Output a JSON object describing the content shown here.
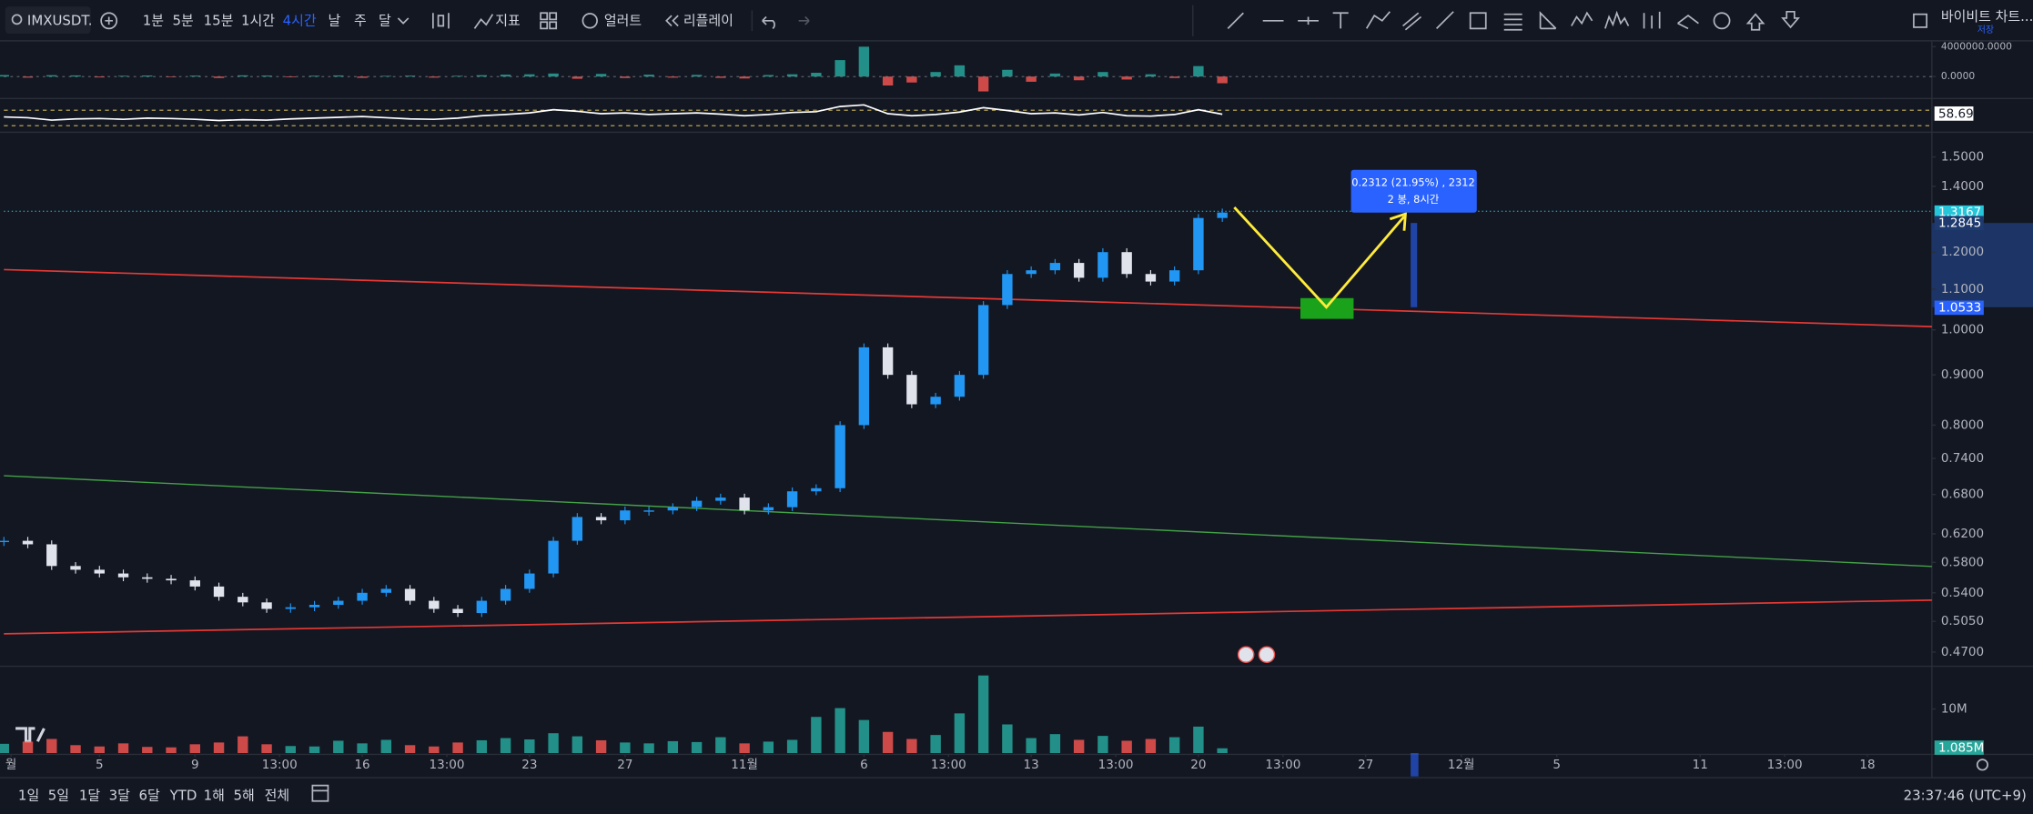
{
  "toolbar": {
    "symbol": "IMXUSDT.",
    "intervals": [
      "1분",
      "5분",
      "15분",
      "1시간",
      "4시간",
      "날",
      "주",
      "달"
    ],
    "indicators": "지표",
    "alerts": "얼러트",
    "replay": "리플레이",
    "right_label": "바이비트 차트...",
    "right_sub": "저장"
  },
  "measure": {
    "line1": "0.2312 (21.95%) , 2312",
    "line2": "2 봉, 8시간"
  },
  "bottom_bar": {
    "ranges": [
      "1일",
      "5일",
      "1달",
      "3달",
      "6달",
      "YTD",
      "1해",
      "5해",
      "전체"
    ],
    "clock": "23:37:46 (UTC+9)"
  },
  "chart_data": [
    {
      "type": "candlestick",
      "up_color": "#2196f3",
      "down_color": "#e0e3eb",
      "log_scale": true,
      "x": [
        0,
        1,
        2,
        3,
        4,
        5,
        6,
        7,
        8,
        9,
        10,
        11,
        12,
        13,
        14,
        15,
        16,
        17,
        18,
        19,
        20,
        21,
        22,
        23,
        24,
        25,
        26,
        27,
        28,
        29,
        30,
        31,
        32,
        33,
        34,
        35,
        36,
        37,
        38,
        39,
        40,
        41,
        42,
        43,
        44,
        45,
        46,
        47,
        48,
        49,
        50,
        51
      ],
      "values": [
        0.61,
        0.605,
        0.575,
        0.57,
        0.565,
        0.56,
        0.558,
        0.556,
        0.548,
        0.535,
        0.528,
        0.52,
        0.522,
        0.525,
        0.53,
        0.54,
        0.545,
        0.53,
        0.52,
        0.515,
        0.53,
        0.545,
        0.565,
        0.61,
        0.645,
        0.64,
        0.655,
        0.655,
        0.66,
        0.67,
        0.675,
        0.655,
        0.66,
        0.685,
        0.69,
        0.8,
        0.96,
        0.9,
        0.84,
        0.855,
        0.9,
        1.06,
        1.14,
        1.15,
        1.17,
        1.13,
        1.2,
        1.14,
        1.12,
        1.15,
        1.3,
        1.3167
      ],
      "ylim": [
        0.456,
        1.575
      ],
      "yticks": [
        {
          "value": 1.5,
          "label": "1.5000"
        },
        {
          "value": 1.4,
          "label": "1.4000"
        },
        {
          "value": 1.2,
          "label": "1.2000"
        },
        {
          "value": 1.1,
          "label": "1.1000"
        },
        {
          "value": 1.0,
          "label": "1.0000"
        },
        {
          "value": 0.9,
          "label": "0.9000"
        },
        {
          "value": 0.8,
          "label": "0.8000"
        },
        {
          "value": 0.74,
          "label": "0.7400"
        },
        {
          "value": 0.68,
          "label": "0.6800"
        },
        {
          "value": 0.62,
          "label": "0.6200"
        },
        {
          "value": 0.58,
          "label": "0.5800"
        },
        {
          "value": 0.54,
          "label": "0.5400"
        },
        {
          "value": 0.505,
          "label": "0.5050"
        },
        {
          "value": 0.47,
          "label": "0.4700"
        }
      ],
      "xlim": [
        0,
        80.7
      ],
      "xticks": [
        {
          "value": 0.3,
          "label": "월"
        },
        {
          "value": 4,
          "label": "5"
        },
        {
          "value": 8,
          "label": "9"
        },
        {
          "value": 11.54,
          "label": "13:00"
        },
        {
          "value": 15,
          "label": "16"
        },
        {
          "value": 18.54,
          "label": "13:00"
        },
        {
          "value": 22,
          "label": "23"
        },
        {
          "value": 26,
          "label": "27"
        },
        {
          "value": 31,
          "label": "11월"
        },
        {
          "value": 36,
          "label": "6"
        },
        {
          "value": 39.54,
          "label": "13:00"
        },
        {
          "value": 43,
          "label": "13"
        },
        {
          "value": 46.54,
          "label": "13:00"
        },
        {
          "value": 50,
          "label": "20"
        },
        {
          "value": 53.54,
          "label": "13:00"
        },
        {
          "value": 57,
          "label": "27"
        },
        {
          "value": 61,
          "label": "12월"
        },
        {
          "value": 65,
          "label": "5"
        },
        {
          "value": 71,
          "label": "11"
        },
        {
          "value": 74.54,
          "label": "13:00"
        },
        {
          "value": 78,
          "label": "18"
        }
      ],
      "price_labels": [
        1.3167,
        1.2845,
        1.0533
      ]
    },
    {
      "type": "bar",
      "color": "#26a69a",
      "negative_color": "#ef5350",
      "x": [
        0,
        1,
        2,
        3,
        4,
        5,
        6,
        7,
        8,
        9,
        10,
        11,
        12,
        13,
        14,
        15,
        16,
        17,
        18,
        19,
        20,
        21,
        22,
        23,
        24,
        25,
        26,
        27,
        28,
        29,
        30,
        31,
        32,
        33,
        34,
        35,
        36,
        37,
        38,
        39,
        40,
        41,
        42,
        43,
        44,
        45,
        46,
        47,
        48,
        49,
        50,
        51
      ],
      "values": [
        200000,
        -150000,
        180000,
        150000,
        -120000,
        100000,
        140000,
        -90000,
        120000,
        -200000,
        160000,
        130000,
        -100000,
        110000,
        150000,
        -180000,
        90000,
        120000,
        -150000,
        100000,
        180000,
        250000,
        300000,
        400000,
        -300000,
        350000,
        -200000,
        250000,
        -150000,
        220000,
        -180000,
        -260000,
        200000,
        300000,
        500000,
        2200000,
        4000000,
        -1200000,
        -800000,
        600000,
        1500000,
        -2000000,
        900000,
        -700000,
        400000,
        -500000,
        600000,
        -400000,
        300000,
        -200000,
        1400000,
        -900000
      ],
      "ylim": [
        -2600000,
        4700000
      ],
      "yticks": [
        {
          "value": 4000000,
          "label": "4000000.0000"
        },
        {
          "value": 0,
          "label": "0.0000"
        }
      ]
    },
    {
      "type": "line",
      "color": "#ffffff",
      "x": [
        0,
        1,
        2,
        3,
        4,
        5,
        6,
        7,
        8,
        9,
        10,
        11,
        12,
        13,
        14,
        15,
        16,
        17,
        18,
        19,
        20,
        21,
        22,
        23,
        24,
        25,
        26,
        27,
        28,
        29,
        30,
        31,
        32,
        33,
        34,
        35,
        36,
        37,
        38,
        39,
        40,
        41,
        42,
        43,
        44,
        45,
        46,
        47,
        48,
        49,
        50,
        51
      ],
      "values": [
        52,
        50,
        44,
        47,
        48,
        46,
        49,
        48,
        46,
        43,
        45,
        44,
        47,
        49,
        51,
        53,
        50,
        47,
        46,
        49,
        55,
        58,
        62,
        70,
        66,
        60,
        62,
        58,
        60,
        62,
        59,
        55,
        58,
        63,
        65,
        78,
        82,
        60,
        55,
        58,
        64,
        75,
        68,
        60,
        62,
        57,
        63,
        55,
        54,
        58,
        70,
        58.69
      ],
      "ylim": [
        30,
        85
      ]
    },
    {
      "type": "bar",
      "up_color": "#26a69a",
      "down_color": "#ef5350",
      "x": [
        0,
        1,
        2,
        3,
        4,
        5,
        6,
        7,
        8,
        9,
        10,
        11,
        12,
        13,
        14,
        15,
        16,
        17,
        18,
        19,
        20,
        21,
        22,
        23,
        24,
        25,
        26,
        27,
        28,
        29,
        30,
        31,
        32,
        33,
        34,
        35,
        36,
        37,
        38,
        39,
        40,
        41,
        42,
        43,
        44,
        45,
        46,
        47,
        48,
        49,
        50,
        51
      ],
      "values": [
        2100000,
        2600000,
        3200000,
        1800000,
        1500000,
        2200000,
        1400000,
        1300000,
        2000000,
        2400000,
        3800000,
        2000000,
        1600000,
        1500000,
        2800000,
        2200000,
        3000000,
        1800000,
        1500000,
        2400000,
        2900000,
        3400000,
        3100000,
        4500000,
        3800000,
        2900000,
        2400000,
        2200000,
        2700000,
        2500000,
        3600000,
        2200000,
        2600000,
        3000000,
        8200000,
        10200000,
        7500000,
        4800000,
        3200000,
        4100000,
        9000000,
        17600000,
        6500000,
        3400000,
        4300000,
        3000000,
        3900000,
        2800000,
        3200000,
        3600000,
        6000000,
        1085000
      ],
      "value_labels": [
        null,
        null,
        null,
        null,
        null,
        null,
        null,
        null,
        null,
        null,
        null,
        null,
        null,
        null,
        null,
        null,
        null,
        null,
        null,
        null,
        null,
        null,
        null,
        null,
        null,
        null,
        null,
        null,
        null,
        null,
        null,
        null,
        null,
        null,
        null,
        null,
        null,
        null,
        null,
        null,
        null,
        null,
        null,
        null,
        null,
        null,
        null,
        null,
        null,
        null,
        null,
        "1.085M"
      ],
      "ylim": [
        0,
        19400000
      ],
      "yticks": [
        {
          "value": 10000000,
          "label": "10M"
        }
      ]
    }
  ]
}
